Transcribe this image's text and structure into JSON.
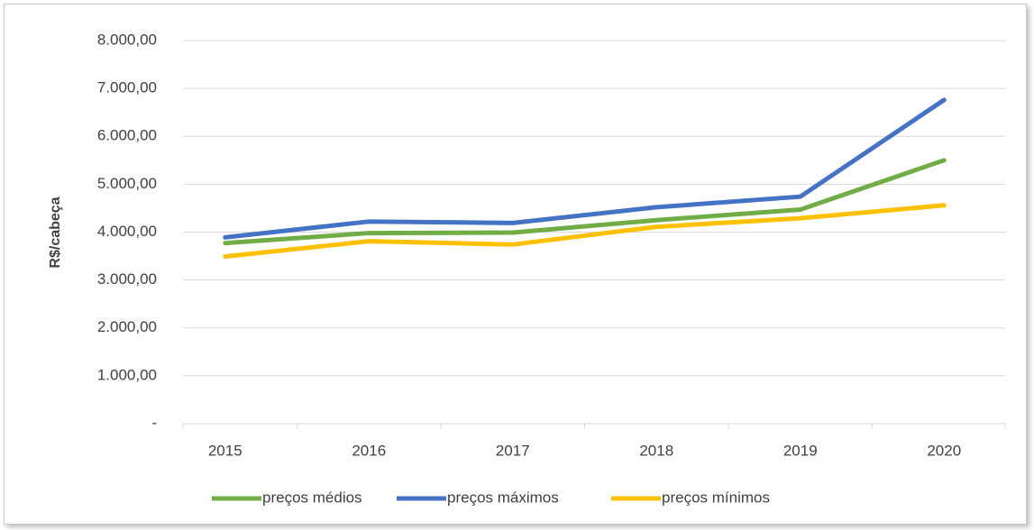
{
  "chart_data": {
    "type": "line",
    "y_label": "R$/cabeça",
    "categories": [
      "2015",
      "2016",
      "2017",
      "2018",
      "2019",
      "2020"
    ],
    "series": [
      {
        "name": "preços médios",
        "color": "#70ad47",
        "values": [
          3770,
          3980,
          3990,
          4250,
          4470,
          5500
        ]
      },
      {
        "name": "preços máximos",
        "color": "#4472c4",
        "values": [
          3890,
          4220,
          4190,
          4520,
          4740,
          6760
        ]
      },
      {
        "name": "preços mínimos",
        "color": "#ffc000",
        "values": [
          3490,
          3810,
          3740,
          4110,
          4290,
          4560
        ]
      }
    ],
    "ylim": [
      0,
      8000
    ],
    "yticks": [
      {
        "value": 0,
        "label": "-"
      },
      {
        "value": 1000,
        "label": "1.000,00"
      },
      {
        "value": 2000,
        "label": "2.000,00"
      },
      {
        "value": 3000,
        "label": "3.000,00"
      },
      {
        "value": 4000,
        "label": "4.000,00"
      },
      {
        "value": 5000,
        "label": "5.000,00"
      },
      {
        "value": 6000,
        "label": "6.000,00"
      },
      {
        "value": 7000,
        "label": "7.000,00"
      },
      {
        "value": 8000,
        "label": "8.000,00"
      }
    ],
    "grid": true,
    "legend": "bottom"
  }
}
